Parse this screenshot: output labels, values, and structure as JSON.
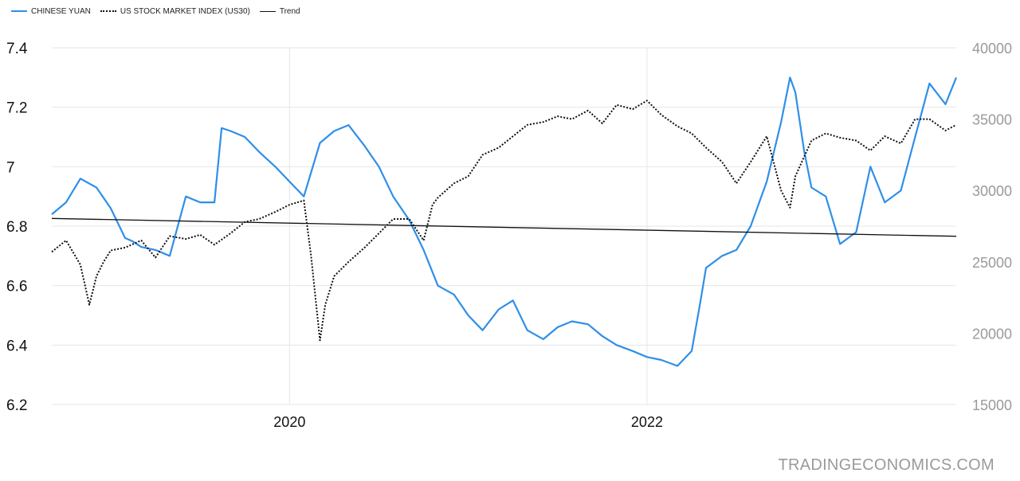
{
  "chart_data": {
    "type": "line",
    "title": "",
    "legend": [
      {
        "label": "CHINESE YUAN",
        "color": "#2f8fe8",
        "style": "solid"
      },
      {
        "label": "US STOCK MARKET INDEX (US30)",
        "color": "#111111",
        "style": "dotted"
      },
      {
        "label": "Trend",
        "color": "#111111",
        "style": "solid"
      }
    ],
    "legend_position": "top-left",
    "x_axis": {
      "range": [
        2018.67,
        2023.73
      ],
      "ticks": [
        2020,
        2022
      ],
      "tick_labels": [
        "2020",
        "2022"
      ]
    },
    "y_left": {
      "range": [
        6.2,
        7.4
      ],
      "ticks": [
        6.2,
        6.4,
        6.6,
        6.8,
        7,
        7.2,
        7.4
      ],
      "tick_labels": [
        "6.2",
        "6.4",
        "6.6",
        "6.8",
        "7",
        "7.2",
        "7.4"
      ]
    },
    "y_right": {
      "range": [
        15000,
        40000
      ],
      "ticks": [
        15000,
        20000,
        25000,
        30000,
        35000,
        40000
      ],
      "tick_labels": [
        "15000",
        "20000",
        "25000",
        "30000",
        "35000",
        "40000"
      ]
    },
    "grid": true,
    "series": [
      {
        "name": "CHINESE YUAN",
        "axis": "left",
        "color": "#2f8fe8",
        "x": [
          2018.67,
          2018.75,
          2018.83,
          2018.92,
          2019.0,
          2019.08,
          2019.12,
          2019.17,
          2019.25,
          2019.33,
          2019.42,
          2019.5,
          2019.58,
          2019.62,
          2019.67,
          2019.75,
          2019.83,
          2019.92,
          2020.0,
          2020.08,
          2020.17,
          2020.25,
          2020.33,
          2020.42,
          2020.5,
          2020.58,
          2020.67,
          2020.75,
          2020.83,
          2020.92,
          2021.0,
          2021.08,
          2021.17,
          2021.25,
          2021.33,
          2021.42,
          2021.5,
          2021.58,
          2021.67,
          2021.75,
          2021.83,
          2021.92,
          2022.0,
          2022.08,
          2022.17,
          2022.25,
          2022.3,
          2022.33,
          2022.42,
          2022.5,
          2022.58,
          2022.67,
          2022.75,
          2022.8,
          2022.83,
          2022.88,
          2022.92,
          2023.0,
          2023.08,
          2023.17,
          2023.25,
          2023.33,
          2023.42,
          2023.5,
          2023.58,
          2023.67,
          2023.73
        ],
        "values": [
          6.84,
          6.88,
          6.96,
          6.93,
          6.86,
          6.76,
          6.75,
          6.73,
          6.72,
          6.7,
          6.9,
          6.88,
          6.88,
          7.13,
          7.12,
          7.1,
          7.05,
          7.0,
          6.95,
          6.9,
          7.08,
          7.12,
          7.14,
          7.07,
          7.0,
          6.9,
          6.82,
          6.72,
          6.6,
          6.57,
          6.5,
          6.45,
          6.52,
          6.55,
          6.45,
          6.42,
          6.46,
          6.48,
          6.47,
          6.43,
          6.4,
          6.38,
          6.36,
          6.35,
          6.33,
          6.38,
          6.55,
          6.66,
          6.7,
          6.72,
          6.8,
          6.95,
          7.15,
          7.3,
          7.25,
          7.05,
          6.93,
          6.9,
          6.74,
          6.78,
          7.0,
          6.88,
          6.92,
          7.1,
          7.28,
          7.21,
          7.3
        ]
      },
      {
        "name": "US STOCK MARKET INDEX (US30)",
        "axis": "right",
        "color": "#111111",
        "x": [
          2018.67,
          2018.75,
          2018.83,
          2018.88,
          2018.92,
          2018.96,
          2019.0,
          2019.08,
          2019.17,
          2019.25,
          2019.33,
          2019.42,
          2019.5,
          2019.58,
          2019.67,
          2019.75,
          2019.83,
          2019.92,
          2020.0,
          2020.08,
          2020.12,
          2020.17,
          2020.2,
          2020.25,
          2020.33,
          2020.42,
          2020.5,
          2020.58,
          2020.67,
          2020.75,
          2020.8,
          2020.83,
          2020.92,
          2021.0,
          2021.08,
          2021.17,
          2021.25,
          2021.33,
          2021.42,
          2021.5,
          2021.58,
          2021.67,
          2021.75,
          2021.83,
          2021.92,
          2022.0,
          2022.08,
          2022.17,
          2022.25,
          2022.33,
          2022.42,
          2022.5,
          2022.58,
          2022.67,
          2022.75,
          2022.8,
          2022.83,
          2022.92,
          2023.0,
          2023.08,
          2023.17,
          2023.25,
          2023.33,
          2023.42,
          2023.5,
          2023.58,
          2023.67,
          2023.73
        ],
        "values": [
          25700,
          26500,
          24800,
          22000,
          24000,
          25000,
          25800,
          26000,
          26500,
          25300,
          26800,
          26600,
          26900,
          26200,
          27000,
          27800,
          28000,
          28500,
          29000,
          29300,
          25500,
          19500,
          22000,
          24000,
          25000,
          26000,
          27000,
          28000,
          28000,
          26500,
          29000,
          29500,
          30500,
          31000,
          32500,
          33000,
          33800,
          34600,
          34800,
          35200,
          35000,
          35600,
          34700,
          36000,
          35700,
          36300,
          35300,
          34500,
          34000,
          33000,
          32000,
          30500,
          32000,
          33800,
          30000,
          28800,
          31000,
          33500,
          34000,
          33700,
          33500,
          32800,
          33800,
          33300,
          35000,
          35000,
          34200,
          34600
        ]
      },
      {
        "name": "Trend",
        "axis": "left",
        "color": "#111111",
        "x": [
          2018.67,
          2023.73
        ],
        "values": [
          6.826,
          6.766
        ]
      }
    ]
  },
  "watermark": "TRADINGECONOMICS.COM"
}
